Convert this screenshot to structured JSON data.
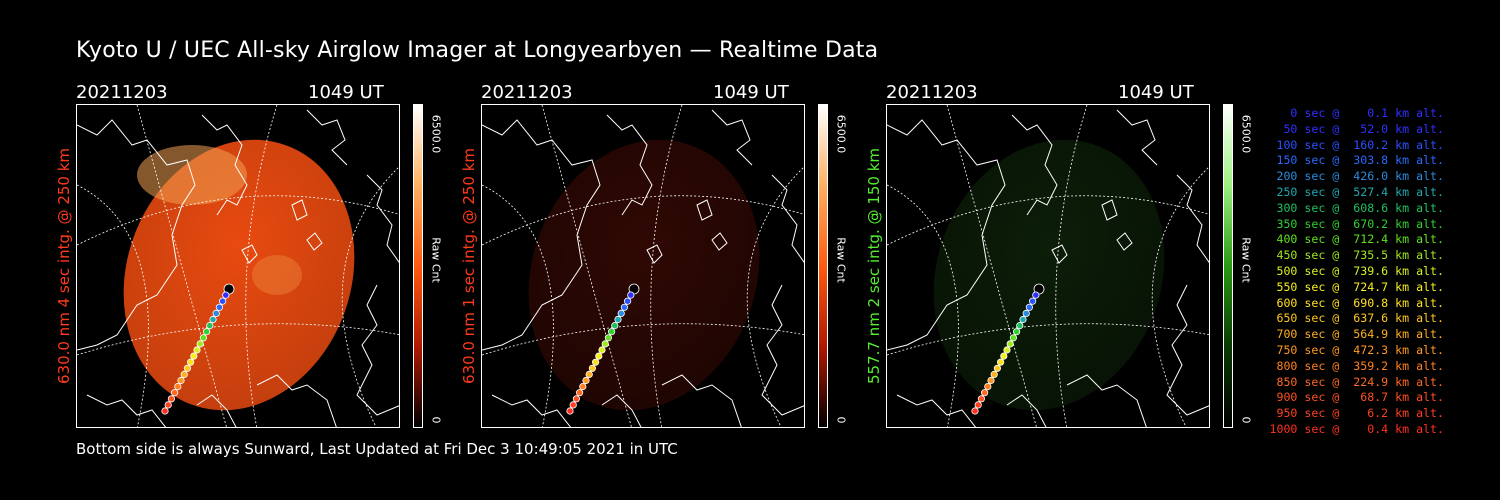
{
  "title": "Kyoto U / UEC All-sky Airglow Imager at Longyearbyen — Realtime Data",
  "footer": "Bottom side is always Sunward, Last Updated at Fri Dec  3 10:49:05 2021 in UTC",
  "panels": [
    {
      "date": "20211203",
      "time": "1049 UT",
      "ylabel": "630.0 nm 4 sec intg. @ 250 km",
      "label_color": "#ff3b1a",
      "cbar_max": "6500.0",
      "cbar_unit": "Raw Cnt",
      "cbar_min": "0",
      "cbar_colors": [
        "#ffffff",
        "#ffb060",
        "#ff5a10",
        "#b01800",
        "#000000"
      ],
      "image_color": "#e84a10",
      "brightness": 1.0
    },
    {
      "date": "20211203",
      "time": "1049 UT",
      "ylabel": "630.0 nm 1 sec intg. @ 250 km",
      "label_color": "#ff3b1a",
      "cbar_max": "6500.0",
      "cbar_unit": "Raw Cnt",
      "cbar_min": "0",
      "cbar_colors": [
        "#ffffff",
        "#ffb060",
        "#ff5a10",
        "#b01800",
        "#000000"
      ],
      "image_color": "#6a1208",
      "brightness": 0.35
    },
    {
      "date": "20211203",
      "time": "1049 UT",
      "ylabel": "557.7 nm 2 sec intg. @ 150 km",
      "label_color": "#55ee33",
      "cbar_max": "6500.0",
      "cbar_unit": "Raw Cnt",
      "cbar_min": "0",
      "cbar_colors": [
        "#ffffff",
        "#9cf080",
        "#2a9a12",
        "#0a3a04",
        "#000000"
      ],
      "image_color": "#1a4212",
      "brightness": 0.35
    }
  ],
  "legend": [
    {
      "text": "   0 sec @    0.1 km alt.",
      "color": "#3030ff"
    },
    {
      "text": "  50 sec @   52.0 km alt.",
      "color": "#3030ff"
    },
    {
      "text": " 100 sec @  160.2 km alt.",
      "color": "#2a50ff"
    },
    {
      "text": " 150 sec @  303.8 km alt.",
      "color": "#2a6aff"
    },
    {
      "text": " 200 sec @  426.0 km alt.",
      "color": "#2a8ae0"
    },
    {
      "text": " 250 sec @  527.4 km alt.",
      "color": "#20a8b0"
    },
    {
      "text": " 300 sec @  608.6 km alt.",
      "color": "#20c060"
    },
    {
      "text": " 350 sec @  670.2 km alt.",
      "color": "#30d030"
    },
    {
      "text": " 400 sec @  712.4 km alt.",
      "color": "#60e020"
    },
    {
      "text": " 450 sec @  735.5 km alt.",
      "color": "#a0e820"
    },
    {
      "text": " 500 sec @  739.6 km alt.",
      "color": "#d8f020"
    },
    {
      "text": " 550 sec @  724.7 km alt.",
      "color": "#f8f020"
    },
    {
      "text": " 600 sec @  690.8 km alt.",
      "color": "#ffe020"
    },
    {
      "text": " 650 sec @  637.6 km alt.",
      "color": "#ffc820"
    },
    {
      "text": " 700 sec @  564.9 km alt.",
      "color": "#ffb020"
    },
    {
      "text": " 750 sec @  472.3 km alt.",
      "color": "#ff9820"
    },
    {
      "text": " 800 sec @  359.2 km alt.",
      "color": "#ff8020"
    },
    {
      "text": " 850 sec @  224.9 km alt.",
      "color": "#ff6820"
    },
    {
      "text": " 900 sec @   68.7 km alt.",
      "color": "#ff5020"
    },
    {
      "text": " 950 sec @    6.2 km alt.",
      "color": "#ff4020"
    },
    {
      "text": "1000 sec @    0.4 km alt.",
      "color": "#ff3020"
    }
  ]
}
